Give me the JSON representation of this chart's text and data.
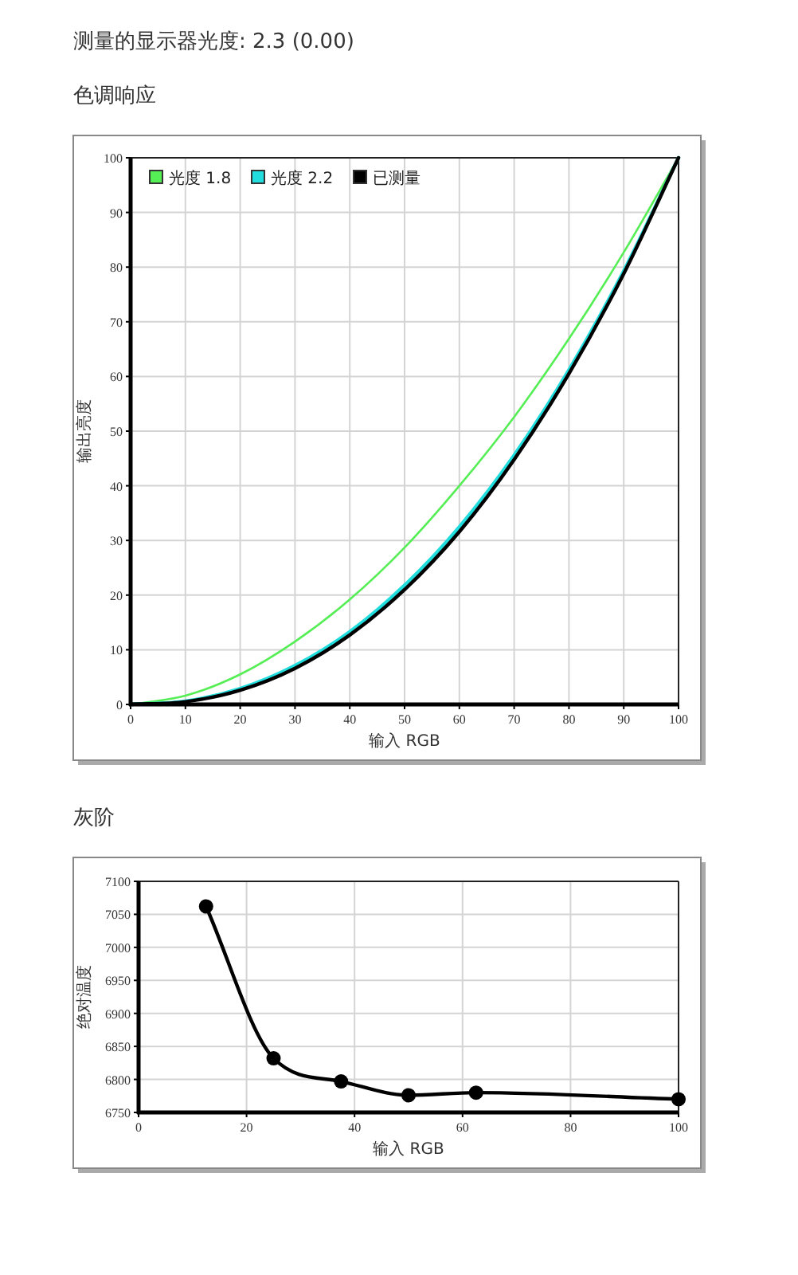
{
  "chart_data": [
    {
      "type": "line",
      "title": "色调响应",
      "annotations": [
        "测量的显示器光度: 2.3 (0.00)"
      ],
      "xlabel": "输入 RGB",
      "ylabel": "输出亮度",
      "x": [
        0,
        10,
        20,
        30,
        40,
        50,
        60,
        70,
        80,
        90,
        100
      ],
      "series": [
        {
          "name": "光度 1.8",
          "color": "#55ee55",
          "values": [
            0,
            1.6,
            5.5,
            11.5,
            19.2,
            28.7,
            40,
            52.6,
            66.9,
            82.7,
            100
          ]
        },
        {
          "name": "光度 2.2",
          "color": "#22dddd",
          "values": [
            0,
            0.6,
            2.9,
            7.1,
            13.3,
            21.8,
            32.5,
            45.6,
            61.2,
            79.3,
            100
          ]
        },
        {
          "name": "已测量",
          "color": "#000000",
          "values": [
            0,
            0.5,
            2.6,
            6.6,
            12.7,
            21,
            31.6,
            44.8,
            60.5,
            78.8,
            100
          ]
        }
      ],
      "xlim": [
        0,
        100
      ],
      "ylim": [
        0,
        100
      ],
      "xticks": [
        0,
        10,
        20,
        30,
        40,
        50,
        60,
        70,
        80,
        90,
        100
      ],
      "yticks": [
        0,
        10,
        20,
        30,
        40,
        50,
        60,
        70,
        80,
        90,
        100
      ],
      "grid": true,
      "legend": "top left"
    },
    {
      "type": "line",
      "title": "灰阶",
      "xlabel": "输入 RGB",
      "ylabel": "绝对温度",
      "x": [
        12.5,
        25,
        37.5,
        50,
        62.5,
        100
      ],
      "values": [
        7062,
        6832,
        6797,
        6776,
        6780,
        6770
      ],
      "color": "#000000",
      "marker": "circle",
      "xlim": [
        0,
        100
      ],
      "ylim": [
        6750,
        7100
      ],
      "xticks": [
        0,
        20,
        40,
        60,
        80,
        100
      ],
      "yticks": [
        6750,
        6800,
        6850,
        6900,
        6950,
        7000,
        7050,
        7100
      ],
      "grid": true
    }
  ]
}
